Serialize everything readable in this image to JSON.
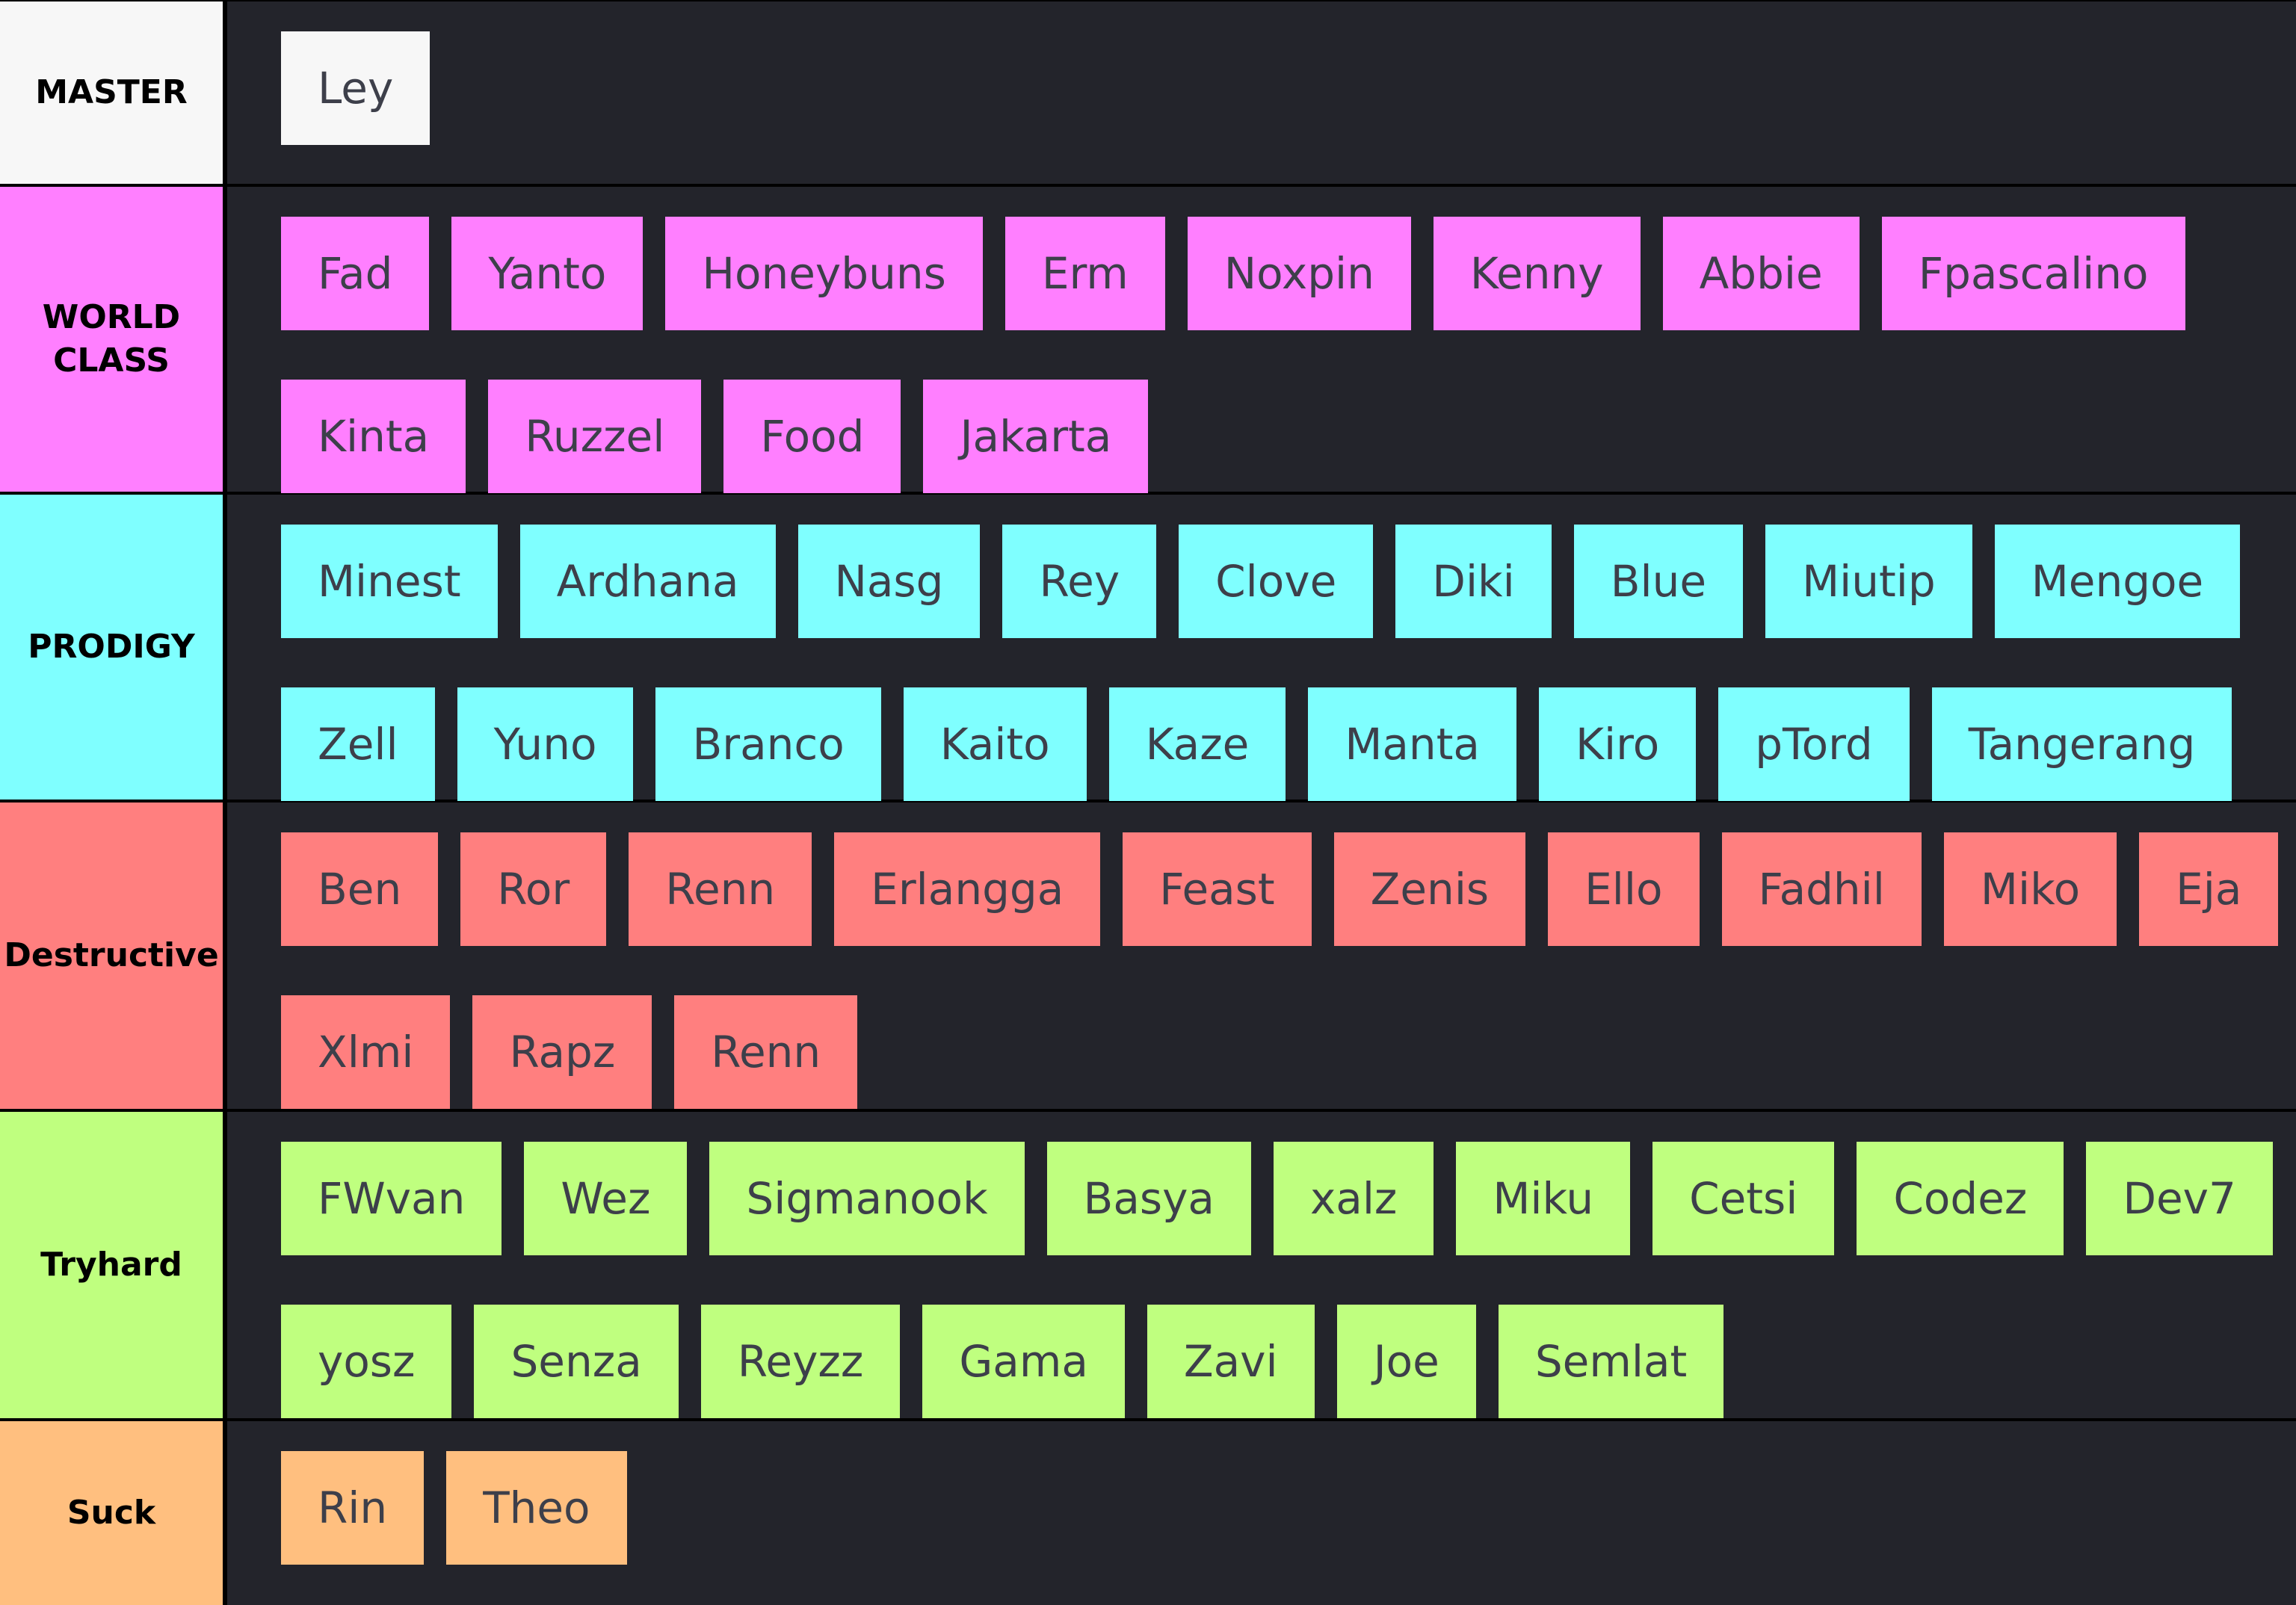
{
  "tiers": [
    {
      "label": "MASTER",
      "color": "#f7f7f7",
      "items": [
        "Ley"
      ]
    },
    {
      "label": "WORLD\nCLASS",
      "color": "#ff7fff",
      "items": [
        "Fad",
        "Yanto",
        "Honeybuns",
        "Erm",
        "Noxpin",
        "Kenny",
        "Abbie",
        "Fpascalino",
        "Kinta",
        "Ruzzel",
        "Food",
        "Jakarta"
      ]
    },
    {
      "label": "PRODIGY",
      "color": "#7fffff",
      "items": [
        "Minest",
        "Ardhana",
        "Nasg",
        "Rey",
        "Clove",
        "Diki",
        "Blue",
        "Miutip",
        "Mengoe",
        "Zell",
        "Yuno",
        "Branco",
        "Kaito",
        "Kaze",
        "Manta",
        "Kiro",
        "pTord",
        "Tangerang"
      ]
    },
    {
      "label": "Destructive",
      "color": "#ff7f7f",
      "items": [
        "Ben",
        "Ror",
        "Renn",
        "Erlangga",
        "Feast",
        "Zenis",
        "Ello",
        "Fadhil",
        "Miko",
        "Eja",
        "Xlmi",
        "Rapz",
        "Renn"
      ]
    },
    {
      "label": "Tryhard",
      "color": "#bfff7f",
      "items": [
        "FWvan",
        "Wez",
        "Sigmanook",
        "Basya",
        "xalz",
        "Miku",
        "Cetsi",
        "Codez",
        "Dev7",
        "yosz",
        "Senza",
        "Reyzz",
        "Gama",
        "Zavi",
        "Joe",
        "Semlat"
      ]
    },
    {
      "label": "Suck",
      "color": "#ffbf7f",
      "items": [
        "Rin",
        "Theo"
      ]
    }
  ]
}
